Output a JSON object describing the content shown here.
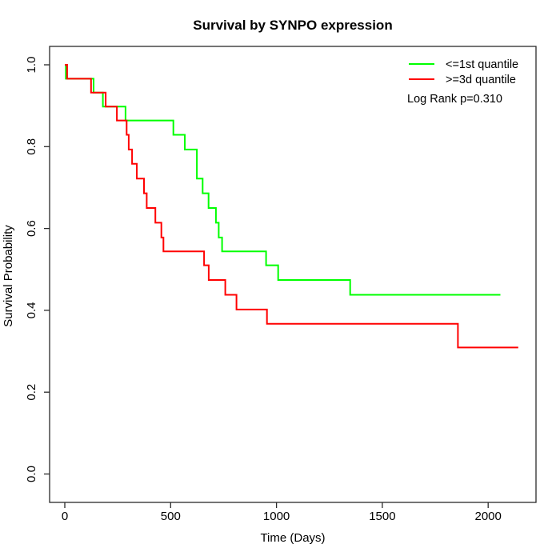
{
  "chart_data": {
    "type": "line",
    "subtype": "kaplan-meier-step-plot",
    "title": "Survival by SYNPO expression",
    "xlabel": "Time (Days)",
    "ylabel": "Survival Probability",
    "annotation": "Log Rank p=0.310",
    "xlim": [
      0,
      2230
    ],
    "ylim": [
      0,
      1
    ],
    "grid": false,
    "legend_position": "top-right",
    "x_ticks": {
      "values": [
        0,
        500,
        1000,
        1500,
        2000
      ],
      "labels": [
        "0",
        "500",
        "1000",
        "1500",
        "2000"
      ]
    },
    "y_ticks": {
      "values": [
        0,
        0.2,
        0.4,
        0.6,
        0.8,
        1.0
      ],
      "labels": [
        "0.0",
        "0.2",
        "0.4",
        "0.6",
        "0.8",
        "1.0"
      ]
    },
    "series": [
      {
        "name": "<=1st quantile",
        "color": "#00ff00",
        "start": [
          0,
          1.0
        ],
        "drops": [
          [
            5,
            0.966
          ],
          [
            136,
            0.932
          ],
          [
            180,
            0.898
          ],
          [
            287,
            0.864
          ],
          [
            513,
            0.829
          ],
          [
            567,
            0.793
          ],
          [
            624,
            0.722
          ],
          [
            651,
            0.686
          ],
          [
            679,
            0.65
          ],
          [
            714,
            0.614
          ],
          [
            727,
            0.578
          ],
          [
            743,
            0.544
          ],
          [
            951,
            0.51
          ],
          [
            1008,
            0.474
          ],
          [
            1348,
            0.438
          ]
        ],
        "end_time": 2058,
        "final_probability": 0.438
      },
      {
        "name": ">=3d quantile",
        "color": "#ff0000",
        "start": [
          0,
          1.0
        ],
        "drops": [
          [
            11,
            0.966
          ],
          [
            124,
            0.932
          ],
          [
            193,
            0.898
          ],
          [
            246,
            0.864
          ],
          [
            292,
            0.829
          ],
          [
            302,
            0.793
          ],
          [
            318,
            0.758
          ],
          [
            340,
            0.722
          ],
          [
            374,
            0.686
          ],
          [
            387,
            0.65
          ],
          [
            428,
            0.614
          ],
          [
            456,
            0.578
          ],
          [
            466,
            0.544
          ],
          [
            658,
            0.51
          ],
          [
            680,
            0.474
          ],
          [
            758,
            0.438
          ],
          [
            811,
            0.402
          ],
          [
            955,
            0.367
          ],
          [
            1857,
            0.309
          ]
        ],
        "end_time": 2142,
        "final_probability": 0.309
      }
    ]
  }
}
